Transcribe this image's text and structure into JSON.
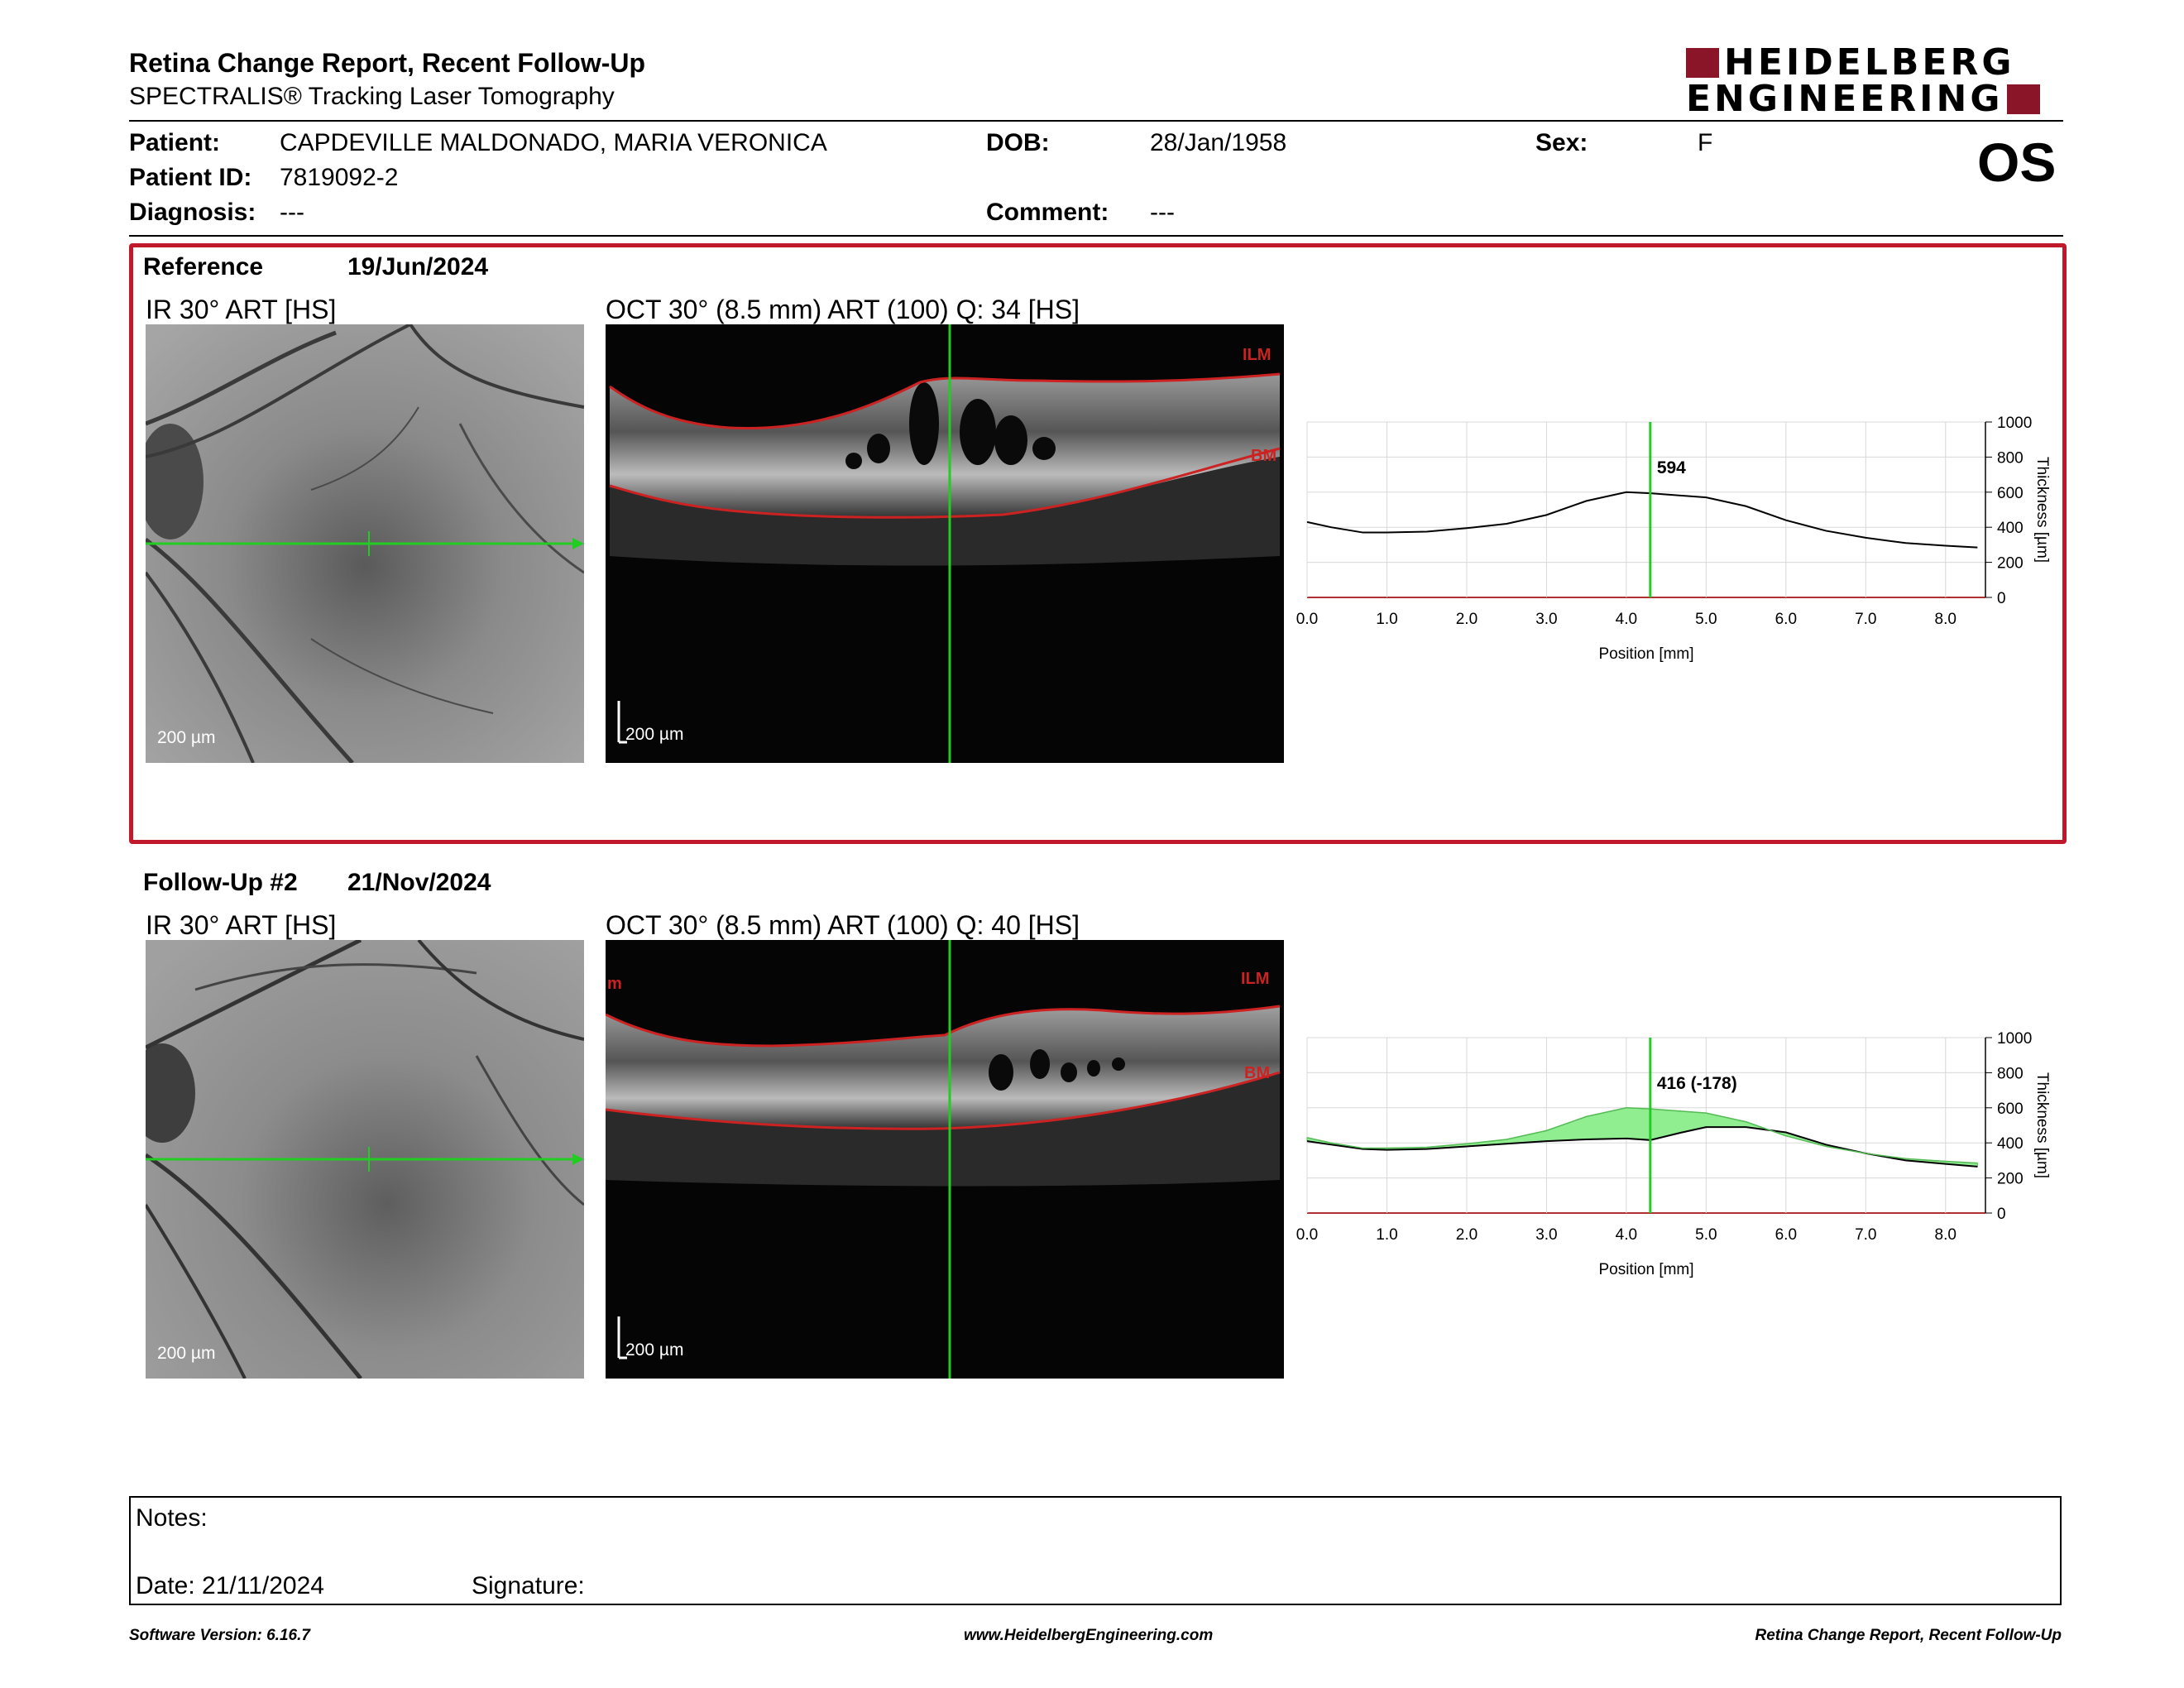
{
  "header": {
    "title": "Retina Change Report, Recent Follow-Up",
    "subtitle": "SPECTRALIS® Tracking Laser Tomography",
    "logo_line1": "HEIDELBERG",
    "logo_line2": "ENGINEERING",
    "eye": "OS"
  },
  "patient": {
    "patient_label": "Patient:",
    "patient_value": "CAPDEVILLE MALDONADO, MARIA VERONICA",
    "dob_label": "DOB:",
    "dob_value": "28/Jan/1958",
    "sex_label": "Sex:",
    "sex_value": "F",
    "id_label": "Patient ID:",
    "id_value": "7819092-2",
    "diagnosis_label": "Diagnosis:",
    "diagnosis_value": "---",
    "comment_label": "Comment:",
    "comment_value": "---"
  },
  "reference": {
    "label": "Reference",
    "date": "19/Jun/2024",
    "ir_caption": "IR 30° ART [HS]",
    "oct_caption": "OCT 30° (8.5 mm) ART (100) Q: 34 [HS]",
    "scale": "200 µm",
    "ilm": "ILM",
    "bm": "BM",
    "marker_value": "594"
  },
  "followup": {
    "label": "Follow-Up #2",
    "date": "21/Nov/2024",
    "ir_caption": "IR 30° ART [HS]",
    "oct_caption": "OCT 30° (8.5 mm) ART (100) Q: 40 [HS]",
    "scale": "200 µm",
    "ilm": "ILM",
    "bm": "BM",
    "edge_mark": "m",
    "marker_value": "416 (-178)"
  },
  "colors": {
    "accent_red": "#c0192b",
    "green": "#22cc22",
    "fill_green": "#90ee90",
    "logo_red": "#8a1428"
  },
  "chart_data": [
    {
      "type": "line",
      "x_label": "Position [mm]",
      "y_label": "Thickness [µm]",
      "xlim": [
        0,
        8.5
      ],
      "ylim": [
        0,
        1000
      ],
      "x_ticks": [
        "0.0",
        "1.0",
        "2.0",
        "3.0",
        "4.0",
        "5.0",
        "6.0",
        "7.0",
        "8.0"
      ],
      "y_ticks": [
        "0",
        "200",
        "400",
        "600",
        "800",
        "1000"
      ],
      "marker_x": 4.3,
      "marker_label": "594",
      "series": [
        {
          "x": [
            0,
            0.3,
            0.7,
            1.0,
            1.5,
            2.0,
            2.5,
            3.0,
            3.5,
            4.0,
            4.3,
            4.7,
            5.0,
            5.5,
            6.0,
            6.5,
            7.0,
            7.5,
            8.0,
            8.4
          ],
          "values": [
            430,
            400,
            370,
            370,
            375,
            395,
            420,
            470,
            550,
            600,
            594,
            580,
            570,
            520,
            440,
            380,
            340,
            310,
            295,
            285
          ]
        }
      ]
    },
    {
      "type": "area",
      "x_label": "Position [mm]",
      "y_label": "Thickness [µm]",
      "xlim": [
        0,
        8.5
      ],
      "ylim": [
        0,
        1000
      ],
      "x_ticks": [
        "0.0",
        "1.0",
        "2.0",
        "3.0",
        "4.0",
        "5.0",
        "6.0",
        "7.0",
        "8.0"
      ],
      "y_ticks": [
        "0",
        "200",
        "400",
        "600",
        "800",
        "1000"
      ],
      "marker_x": 4.3,
      "marker_label": "416 (-178)",
      "series": [
        {
          "x": [
            0,
            0.3,
            0.7,
            1.0,
            1.5,
            2.0,
            2.5,
            3.0,
            3.5,
            4.0,
            4.3,
            4.7,
            5.0,
            5.5,
            6.0,
            6.5,
            7.0,
            7.5,
            8.0,
            8.4
          ],
          "values": [
            430,
            400,
            370,
            370,
            375,
            395,
            420,
            470,
            550,
            600,
            594,
            580,
            570,
            520,
            440,
            380,
            340,
            310,
            295,
            285
          ]
        },
        {
          "x": [
            0,
            0.3,
            0.7,
            1.0,
            1.5,
            2.0,
            2.5,
            3.0,
            3.5,
            4.0,
            4.3,
            4.7,
            5.0,
            5.5,
            6.0,
            6.5,
            7.0,
            7.5,
            8.0,
            8.4
          ],
          "values": [
            410,
            390,
            365,
            360,
            365,
            380,
            395,
            410,
            420,
            425,
            416,
            460,
            490,
            490,
            460,
            390,
            340,
            300,
            280,
            265
          ]
        }
      ]
    }
  ],
  "notes": {
    "notes_label": "Notes:",
    "date_label": "Date: 21/11/2024",
    "signature_label": "Signature:"
  },
  "footer": {
    "left": "Software Version: 6.16.7",
    "center": "www.HeidelbergEngineering.com",
    "right": "Retina Change Report, Recent Follow-Up"
  }
}
